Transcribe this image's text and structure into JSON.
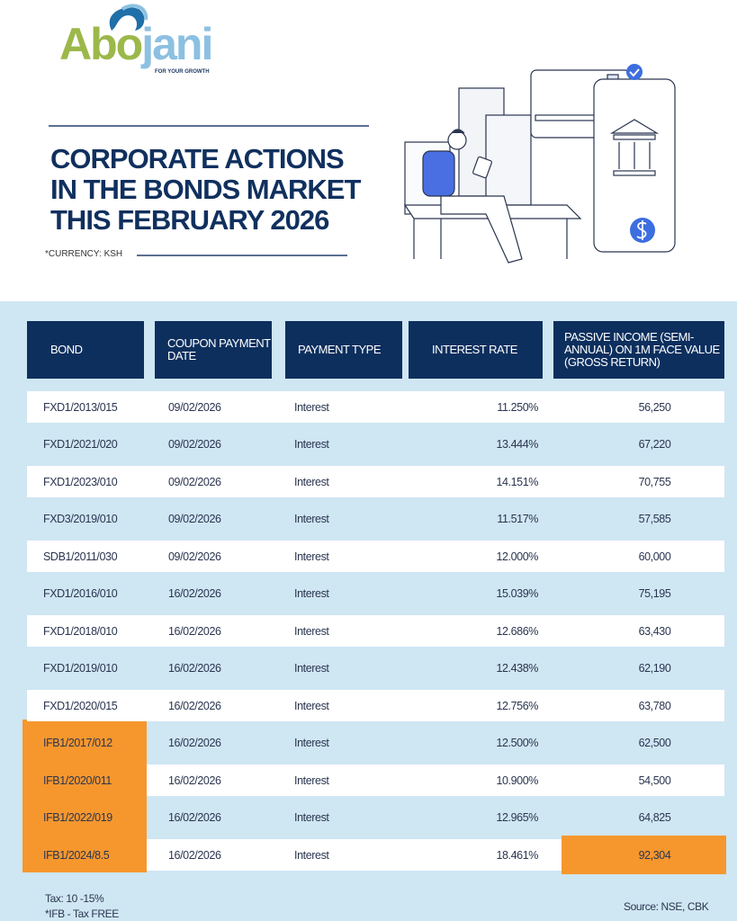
{
  "brand": {
    "name_part1": "Abo",
    "name_part2": "jani",
    "tagline": "FOR YOUR GROWTH"
  },
  "title": {
    "lines": [
      "CORPORATE ACTIONS",
      "IN THE BONDS MARKET",
      "THIS FEBRUARY   2026"
    ],
    "currency_note": "*CURRENCY: KSH"
  },
  "colors": {
    "navy": "#0d2f5e",
    "panel": "#cfe6f3",
    "highlight": "#f6972e",
    "logo_green": "#9cb84a",
    "logo_blue": "#8cc0e2"
  },
  "table": {
    "headers": [
      "BOND",
      "COUPON PAYMENT DATE",
      "PAYMENT TYPE",
      "INTEREST RATE",
      "PASSIVE INCOME (SEMI-ANNUAL) ON 1M FACE VALUE (GROSS RETURN)"
    ],
    "rows": [
      {
        "bond": "FXD1/2013/015",
        "date": "09/02/2026",
        "type": "Interest",
        "rate": "11.250%",
        "income": "56,250"
      },
      {
        "bond": "FXD1/2021/020",
        "date": "09/02/2026",
        "type": "Interest",
        "rate": "13.444%",
        "income": "67,220"
      },
      {
        "bond": "FXD1/2023/010",
        "date": "09/02/2026",
        "type": "Interest",
        "rate": "14.151%",
        "income": "70,755"
      },
      {
        "bond": "FXD3/2019/010",
        "date": "09/02/2026",
        "type": "Interest",
        "rate": "11.517%",
        "income": "57,585"
      },
      {
        "bond": "SDB1/2011/030",
        "date": "09/02/2026",
        "type": "Interest",
        "rate": "12.000%",
        "income": "60,000"
      },
      {
        "bond": "FXD1/2016/010",
        "date": "16/02/2026",
        "type": "Interest",
        "rate": "15.039%",
        "income": "75,195"
      },
      {
        "bond": "FXD1/2018/010",
        "date": "16/02/2026",
        "type": "Interest",
        "rate": "12.686%",
        "income": "63,430"
      },
      {
        "bond": "FXD1/2019/010",
        "date": "16/02/2026",
        "type": "Interest",
        "rate": "12.438%",
        "income": "62,190"
      },
      {
        "bond": "FXD1/2020/015",
        "date": "16/02/2026",
        "type": "Interest",
        "rate": "12.756%",
        "income": "63,780"
      },
      {
        "bond": "IFB1/2017/012",
        "date": "16/02/2026",
        "type": "Interest",
        "rate": "12.500%",
        "income": "62,500"
      },
      {
        "bond": "IFB1/2020/011",
        "date": "16/02/2026",
        "type": "Interest",
        "rate": "10.900%",
        "income": "54,500"
      },
      {
        "bond": "IFB1/2022/019",
        "date": "16/02/2026",
        "type": "Interest",
        "rate": "12.965%",
        "income": "64,825"
      },
      {
        "bond": "IFB1/2024/8.5",
        "date": "16/02/2026",
        "type": "Interest",
        "rate": "18.461%",
        "income": "92,304"
      }
    ]
  },
  "footer": {
    "tax": "Tax: 10 -15%",
    "ifb_note": "*IFB - Tax FREE",
    "source": "Source: NSE, CBK"
  }
}
